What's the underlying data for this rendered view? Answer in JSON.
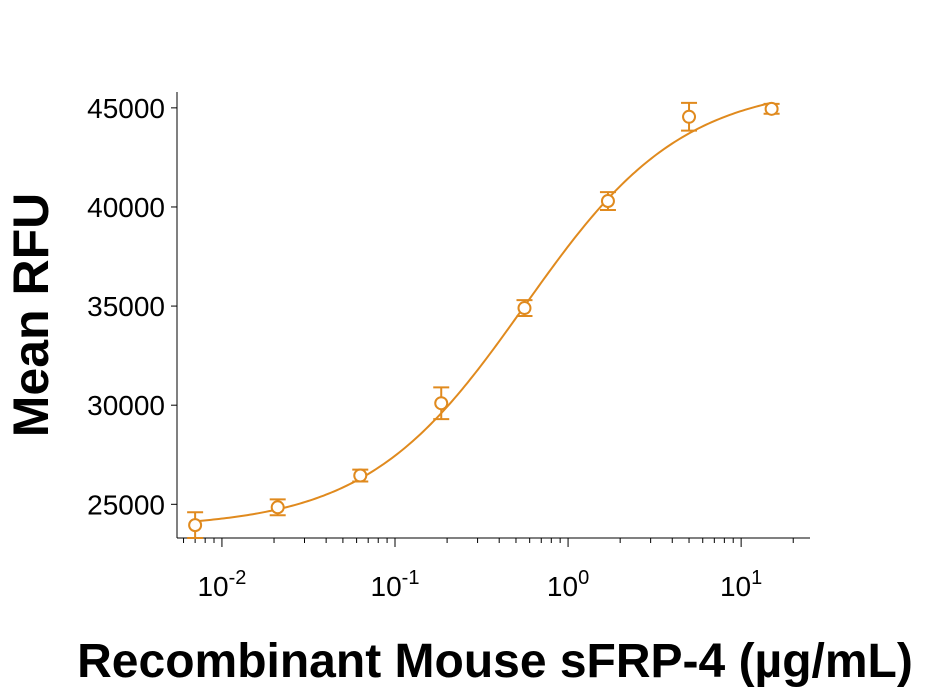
{
  "chart_data": {
    "type": "scatter",
    "xlabel": "Recombinant Mouse sFRP-4 (µg/mL)",
    "ylabel": "Mean RFU",
    "xscale": "log",
    "xlim": [
      0.0055,
      25
    ],
    "ylim": [
      23300,
      45800
    ],
    "x_ticks": [
      0.01,
      0.1,
      1,
      10
    ],
    "x_tick_labels": [
      {
        "base": "10",
        "exp": "-2"
      },
      {
        "base": "10",
        "exp": "-1"
      },
      {
        "base": "10",
        "exp": "0"
      },
      {
        "base": "10",
        "exp": "1"
      }
    ],
    "y_ticks": [
      25000,
      30000,
      35000,
      40000,
      45000
    ],
    "y_tick_labels": [
      "25000",
      "30000",
      "35000",
      "40000",
      "45000"
    ],
    "grid": false,
    "legend": "none",
    "color": "#E08A1E",
    "series": [
      {
        "points": [
          {
            "x": 0.007,
            "y": 23950,
            "err": 650
          },
          {
            "x": 0.021,
            "y": 24850,
            "err": 400
          },
          {
            "x": 0.063,
            "y": 26450,
            "err": 300
          },
          {
            "x": 0.185,
            "y": 30100,
            "err": 800
          },
          {
            "x": 0.56,
            "y": 34900,
            "err": 400
          },
          {
            "x": 1.7,
            "y": 40300,
            "err": 450
          },
          {
            "x": 5.0,
            "y": 44550,
            "err": 700
          },
          {
            "x": 15.0,
            "y": 44950,
            "err": 250
          }
        ],
        "fit": {
          "model": "4PL",
          "bottom": 23800,
          "top": 46200,
          "ec50": 0.56,
          "hill": 0.95
        }
      }
    ]
  }
}
